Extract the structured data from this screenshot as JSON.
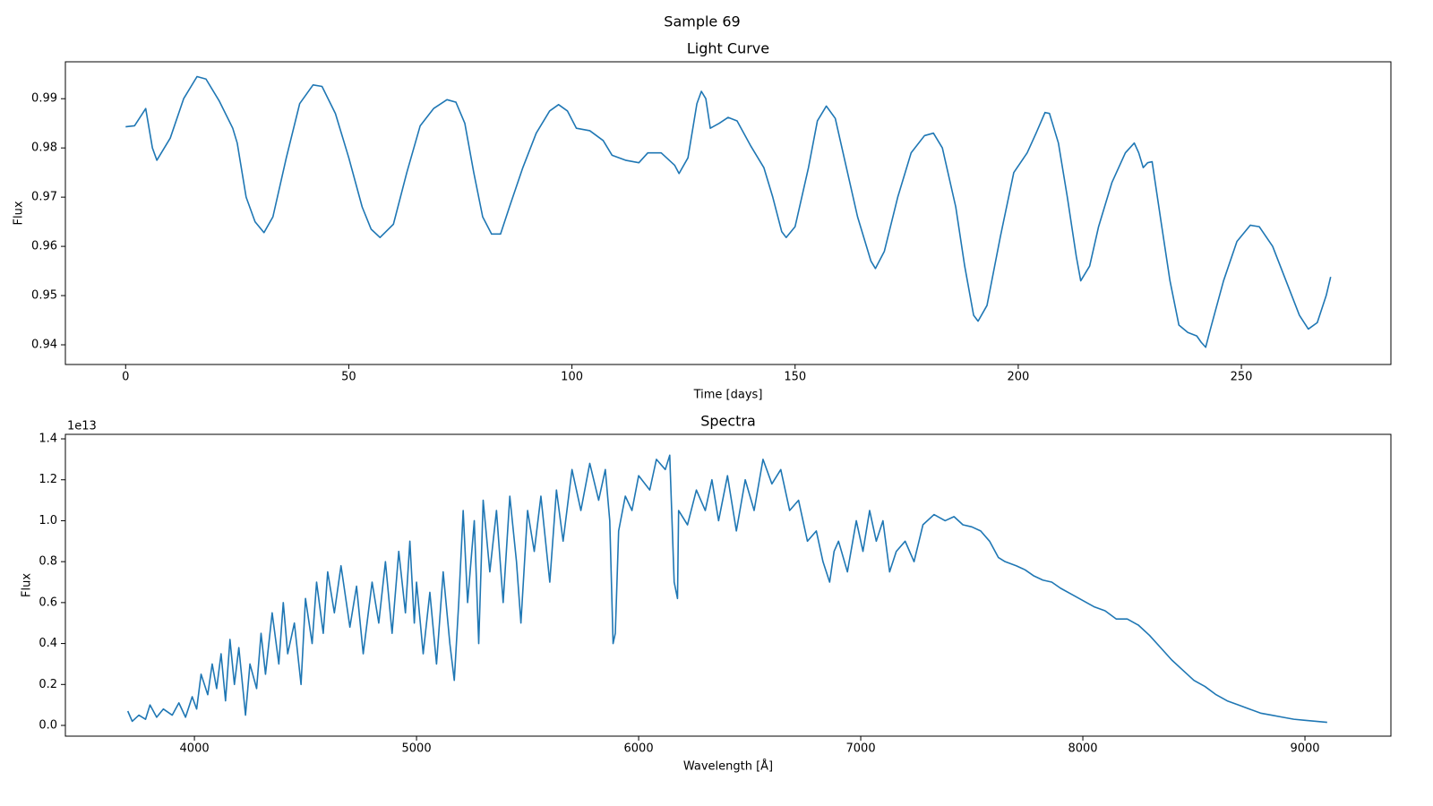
{
  "title": "Sample 69",
  "chart_data": [
    {
      "type": "line",
      "title": "Light Curve",
      "xlabel": "Time [days]",
      "ylabel": "Flux",
      "color": "#1f77b4",
      "grid": false,
      "xlim": [
        -13.5,
        283.5
      ],
      "xticks": [
        0,
        50,
        100,
        150,
        200,
        250
      ],
      "ylim": [
        0.936,
        0.9975
      ],
      "yticks": [
        0.94,
        0.95,
        0.96,
        0.97,
        0.98,
        0.99
      ],
      "x": [
        0,
        2,
        4.5,
        6,
        7,
        10,
        13,
        16,
        18,
        21,
        24,
        25,
        27,
        29,
        31,
        33,
        36,
        39,
        42,
        44,
        47,
        50,
        53,
        55,
        57,
        60,
        63,
        66,
        69,
        72,
        74,
        76,
        78,
        80,
        82,
        84,
        86,
        89,
        92,
        95,
        97,
        99,
        101,
        104,
        107,
        109,
        112,
        115,
        117,
        120,
        123,
        124,
        126,
        128,
        129,
        130,
        131,
        133,
        135,
        137,
        140,
        143,
        145,
        147,
        148,
        150,
        153,
        155,
        157,
        159,
        161,
        164,
        167,
        168,
        170,
        173,
        176,
        179,
        181,
        183,
        186,
        188,
        190,
        191,
        193,
        196,
        199,
        202,
        204,
        206,
        207,
        209,
        211,
        213,
        214,
        216,
        218,
        221,
        224,
        226,
        227,
        228,
        229,
        230,
        232,
        234,
        236,
        238,
        240,
        241,
        242,
        243,
        246,
        249,
        252,
        254,
        257,
        260,
        263,
        265,
        267,
        269,
        270
      ],
      "values": [
        0.9843,
        0.9845,
        0.988,
        0.98,
        0.9775,
        0.982,
        0.99,
        0.9945,
        0.994,
        0.9895,
        0.984,
        0.981,
        0.97,
        0.965,
        0.9628,
        0.966,
        0.978,
        0.989,
        0.9928,
        0.9925,
        0.987,
        0.978,
        0.968,
        0.9635,
        0.9618,
        0.9645,
        0.975,
        0.9845,
        0.988,
        0.9898,
        0.9893,
        0.985,
        0.975,
        0.966,
        0.9625,
        0.9625,
        0.968,
        0.976,
        0.983,
        0.9875,
        0.9888,
        0.9875,
        0.984,
        0.9835,
        0.9815,
        0.9785,
        0.9775,
        0.977,
        0.979,
        0.979,
        0.9765,
        0.9748,
        0.978,
        0.989,
        0.9915,
        0.99,
        0.984,
        0.985,
        0.9862,
        0.9855,
        0.9805,
        0.976,
        0.97,
        0.963,
        0.9618,
        0.964,
        0.976,
        0.9855,
        0.9885,
        0.986,
        0.978,
        0.966,
        0.957,
        0.9555,
        0.959,
        0.97,
        0.979,
        0.9825,
        0.983,
        0.98,
        0.968,
        0.956,
        0.946,
        0.9448,
        0.948,
        0.962,
        0.975,
        0.979,
        0.983,
        0.9872,
        0.987,
        0.981,
        0.97,
        0.958,
        0.953,
        0.956,
        0.964,
        0.973,
        0.979,
        0.981,
        0.979,
        0.976,
        0.977,
        0.9772,
        0.965,
        0.953,
        0.944,
        0.9425,
        0.9418,
        0.9405,
        0.9395,
        0.943,
        0.953,
        0.961,
        0.9643,
        0.964,
        0.96,
        0.953,
        0.946,
        0.9432,
        0.9445,
        0.95,
        0.9538
      ]
    },
    {
      "type": "line",
      "title": "Spectra",
      "xlabel": "Wavelength [Å]",
      "ylabel": "Flux",
      "y_offset_label": "1e13",
      "color": "#1f77b4",
      "grid": false,
      "xlim": [
        3419,
        9387
      ],
      "xticks": [
        4000,
        5000,
        6000,
        7000,
        8000,
        9000
      ],
      "ylim": [
        -0.0525,
        1.422
      ],
      "yticks": [
        {
          "value": 0,
          "label": "0.0"
        },
        0.2,
        0.4,
        0.6,
        0.8,
        {
          "value": 1,
          "label": "1.0"
        },
        1.2,
        1.4
      ],
      "x": [
        3700,
        3720,
        3750,
        3780,
        3800,
        3830,
        3860,
        3900,
        3930,
        3960,
        3990,
        4010,
        4030,
        4060,
        4080,
        4100,
        4120,
        4140,
        4160,
        4180,
        4200,
        4220,
        4230,
        4250,
        4280,
        4300,
        4320,
        4350,
        4380,
        4400,
        4420,
        4450,
        4480,
        4500,
        4530,
        4550,
        4580,
        4600,
        4630,
        4660,
        4700,
        4730,
        4760,
        4800,
        4830,
        4860,
        4890,
        4920,
        4950,
        4970,
        4990,
        5000,
        5030,
        5060,
        5090,
        5120,
        5150,
        5170,
        5190,
        5210,
        5230,
        5260,
        5280,
        5300,
        5330,
        5360,
        5390,
        5420,
        5450,
        5470,
        5500,
        5530,
        5560,
        5600,
        5630,
        5660,
        5700,
        5740,
        5780,
        5820,
        5850,
        5870,
        5885,
        5895,
        5910,
        5940,
        5970,
        6000,
        6050,
        6080,
        6120,
        6140,
        6160,
        6175,
        6180,
        6220,
        6260,
        6300,
        6330,
        6360,
        6400,
        6440,
        6480,
        6520,
        6560,
        6600,
        6640,
        6680,
        6720,
        6760,
        6800,
        6830,
        6860,
        6880,
        6900,
        6940,
        6980,
        7010,
        7040,
        7070,
        7100,
        7130,
        7160,
        7200,
        7240,
        7280,
        7330,
        7380,
        7420,
        7460,
        7500,
        7540,
        7580,
        7620,
        7650,
        7700,
        7740,
        7780,
        7820,
        7860,
        7900,
        7950,
        8000,
        8050,
        8100,
        8150,
        8200,
        8250,
        8300,
        8350,
        8400,
        8450,
        8500,
        8550,
        8600,
        8650,
        8700,
        8750,
        8800,
        8850,
        8900,
        8950,
        9000,
        9050,
        9100
      ],
      "values": [
        0.07,
        0.02,
        0.05,
        0.03,
        0.1,
        0.04,
        0.08,
        0.05,
        0.11,
        0.04,
        0.14,
        0.08,
        0.25,
        0.15,
        0.3,
        0.18,
        0.35,
        0.12,
        0.42,
        0.2,
        0.38,
        0.16,
        0.05,
        0.3,
        0.18,
        0.45,
        0.25,
        0.55,
        0.3,
        0.6,
        0.35,
        0.5,
        0.2,
        0.62,
        0.4,
        0.7,
        0.45,
        0.75,
        0.55,
        0.78,
        0.48,
        0.68,
        0.35,
        0.7,
        0.5,
        0.8,
        0.45,
        0.85,
        0.55,
        0.9,
        0.5,
        0.7,
        0.35,
        0.65,
        0.3,
        0.75,
        0.4,
        0.22,
        0.6,
        1.05,
        0.6,
        1.0,
        0.4,
        1.1,
        0.75,
        1.05,
        0.6,
        1.12,
        0.8,
        0.5,
        1.05,
        0.85,
        1.12,
        0.7,
        1.15,
        0.9,
        1.25,
        1.05,
        1.28,
        1.1,
        1.25,
        1.0,
        0.4,
        0.45,
        0.95,
        1.12,
        1.05,
        1.22,
        1.15,
        1.3,
        1.25,
        1.32,
        0.7,
        0.62,
        1.05,
        0.98,
        1.15,
        1.05,
        1.2,
        1.0,
        1.22,
        0.95,
        1.2,
        1.05,
        1.3,
        1.18,
        1.25,
        1.05,
        1.1,
        0.9,
        0.95,
        0.8,
        0.7,
        0.85,
        0.9,
        0.75,
        1.0,
        0.85,
        1.05,
        0.9,
        1.0,
        0.75,
        0.85,
        0.9,
        0.8,
        0.98,
        1.03,
        1.0,
        1.02,
        0.98,
        0.97,
        0.95,
        0.9,
        0.82,
        0.8,
        0.78,
        0.76,
        0.73,
        0.71,
        0.7,
        0.67,
        0.64,
        0.61,
        0.58,
        0.56,
        0.52,
        0.52,
        0.49,
        0.44,
        0.38,
        0.32,
        0.27,
        0.22,
        0.19,
        0.15,
        0.12,
        0.1,
        0.08,
        0.06,
        0.05,
        0.04,
        0.03,
        0.025,
        0.02,
        0.015
      ]
    }
  ]
}
